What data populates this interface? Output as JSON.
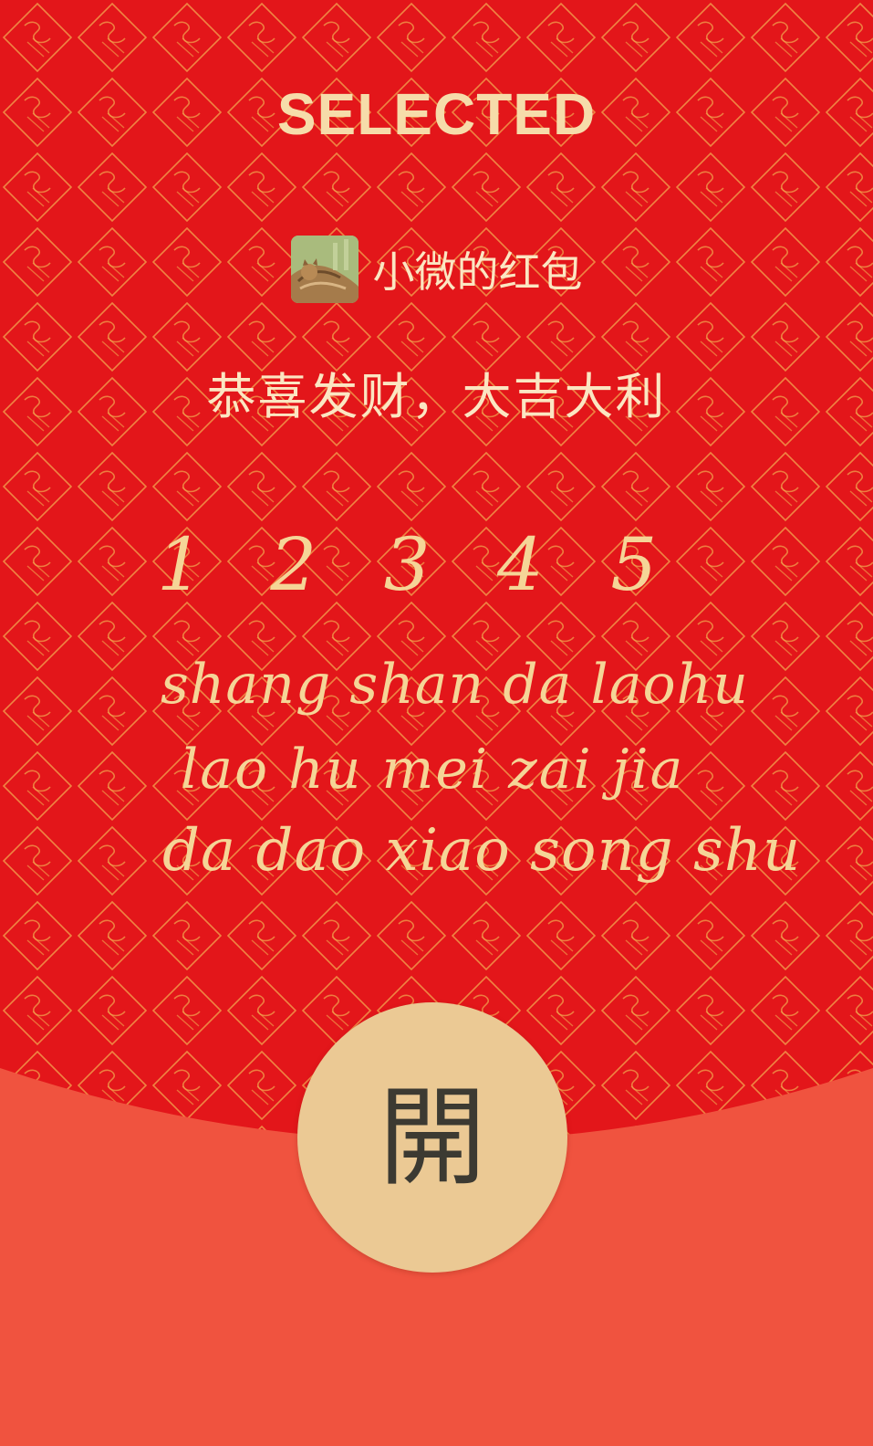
{
  "envelope": {
    "brand": "SELECTED",
    "sender": {
      "name": "小微的红包",
      "avatar_icon": "cat-photo-avatar"
    },
    "greeting": "恭喜发财，大吉大利",
    "handwritten": {
      "numbers": "1 2 3 4 5",
      "line1": "shang shan da laohu",
      "line2": "lao hu mei zai jia",
      "line3": "da dao xiao song shu"
    },
    "open_button_label": "開"
  },
  "colors": {
    "upper_background": "#e3161a",
    "lower_background": "#f0533f",
    "pattern_gold": "#f2b356",
    "text_cream": "#fbe6c2",
    "button_gold": "#ebc994",
    "button_text": "#3c3a32"
  }
}
